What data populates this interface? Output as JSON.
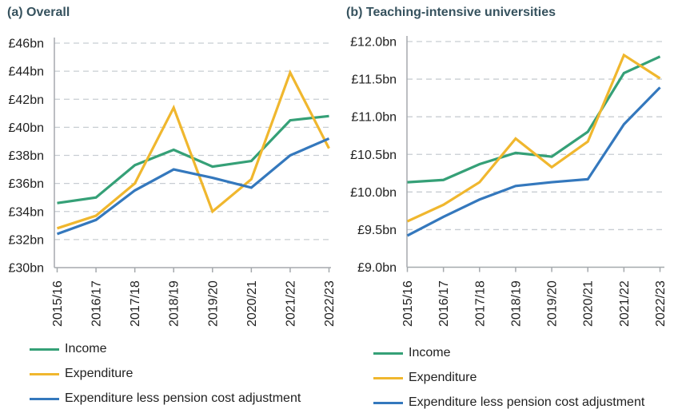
{
  "colors": {
    "income": "#35a077",
    "expenditure": "#f0b72e",
    "expenditure_less_pension": "#3478bd",
    "title_text": "#36525e",
    "axis_text": "#1f1f1f",
    "gridline": "#c8cdd2",
    "axis_line": "#a5a9ad",
    "background": "#ffffff"
  },
  "chart_data": [
    {
      "id": "overall",
      "type": "line",
      "title": "(a) Overall",
      "categories": [
        "2015/16",
        "2016/17",
        "2017/18",
        "2018/19",
        "2019/20",
        "2020/21",
        "2021/22",
        "2022/23"
      ],
      "series": [
        {
          "name": "Income",
          "color_key": "income",
          "values": [
            34.6,
            35.0,
            37.3,
            38.4,
            37.2,
            37.6,
            40.5,
            40.8
          ]
        },
        {
          "name": "Expenditure",
          "color_key": "expenditure",
          "values": [
            32.8,
            33.7,
            36.0,
            41.4,
            34.0,
            36.3,
            43.9,
            38.5
          ]
        },
        {
          "name": "Expenditure less pension cost adjustment",
          "color_key": "expenditure_less_pension",
          "values": [
            32.4,
            33.4,
            35.5,
            37.0,
            36.4,
            35.7,
            38.0,
            39.2
          ]
        }
      ],
      "ylim": [
        30,
        46
      ],
      "ytick_step": 2,
      "ytick_decimals": 0,
      "ytick_prefix": "£",
      "ytick_suffix": "bn",
      "grid": "horizontal-dashed",
      "legend_position": "bottom-left"
    },
    {
      "id": "teaching-intensive",
      "type": "line",
      "title": "(b) Teaching-intensive universities",
      "categories": [
        "2015/16",
        "2016/17",
        "2017/18",
        "2018/19",
        "2019/20",
        "2020/21",
        "2021/22",
        "2022/23"
      ],
      "series": [
        {
          "name": "Income",
          "color_key": "income",
          "values": [
            10.13,
            10.16,
            10.37,
            10.52,
            10.47,
            10.8,
            11.58,
            11.8
          ]
        },
        {
          "name": "Expenditure",
          "color_key": "expenditure",
          "values": [
            9.61,
            9.83,
            10.13,
            10.71,
            10.33,
            10.67,
            11.82,
            11.51
          ]
        },
        {
          "name": "Expenditure less pension cost adjustment",
          "color_key": "expenditure_less_pension",
          "values": [
            9.42,
            9.67,
            9.9,
            10.08,
            10.13,
            10.17,
            10.9,
            11.39
          ]
        }
      ],
      "ylim": [
        9.0,
        12.0
      ],
      "ytick_step": 0.5,
      "ytick_decimals": 1,
      "ytick_prefix": "£",
      "ytick_suffix": "bn",
      "grid": "horizontal-dashed",
      "legend_position": "bottom-left"
    }
  ]
}
